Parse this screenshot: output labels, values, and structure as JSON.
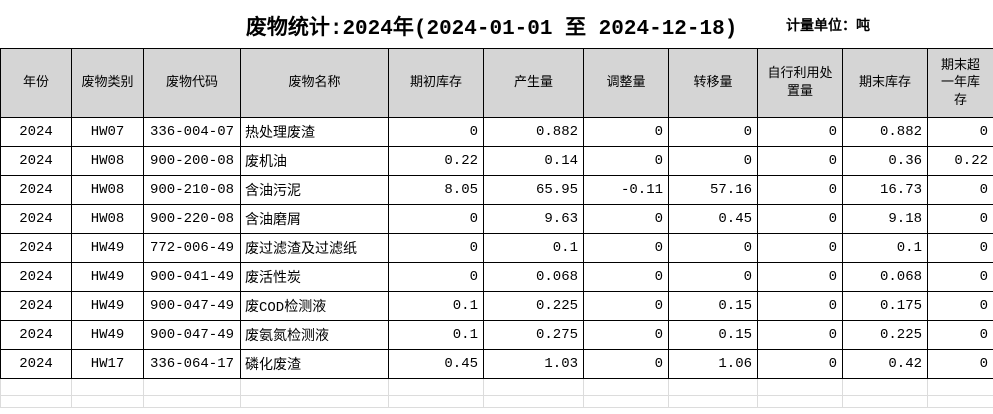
{
  "title": "废物统计:2024年(2024-01-01 至 2024-12-18)",
  "unit_label": "计量单位：吨",
  "table": {
    "columns": [
      "年份",
      "废物类别",
      "废物代码",
      "废物名称",
      "期初库存",
      "产生量",
      "调整量",
      "转移量",
      "自行利用处置量",
      "期末库存",
      "期末超一年库存"
    ],
    "rows": [
      [
        "2024",
        "HW07",
        "336-004-07",
        "热处理废渣",
        "0",
        "0.882",
        "0",
        "0",
        "0",
        "0.882",
        "0"
      ],
      [
        "2024",
        "HW08",
        "900-200-08",
        "废机油",
        "0.22",
        "0.14",
        "0",
        "0",
        "0",
        "0.36",
        "0.22"
      ],
      [
        "2024",
        "HW08",
        "900-210-08",
        "含油污泥",
        "8.05",
        "65.95",
        "-0.11",
        "57.16",
        "0",
        "16.73",
        "0"
      ],
      [
        "2024",
        "HW08",
        "900-220-08",
        "含油磨屑",
        "0",
        "9.63",
        "0",
        "0.45",
        "0",
        "9.18",
        "0"
      ],
      [
        "2024",
        "HW49",
        "772-006-49",
        "废过滤渣及过滤纸",
        "0",
        "0.1",
        "0",
        "0",
        "0",
        "0.1",
        "0"
      ],
      [
        "2024",
        "HW49",
        "900-041-49",
        "废活性炭",
        "0",
        "0.068",
        "0",
        "0",
        "0",
        "0.068",
        "0"
      ],
      [
        "2024",
        "HW49",
        "900-047-49",
        "废COD检测液",
        "0.1",
        "0.225",
        "0",
        "0.15",
        "0",
        "0.175",
        "0"
      ],
      [
        "2024",
        "HW49",
        "900-047-49",
        "废氨氮检测液",
        "0.1",
        "0.275",
        "0",
        "0.15",
        "0",
        "0.225",
        "0"
      ],
      [
        "2024",
        "HW17",
        "336-064-17",
        "磷化废渣",
        "0.45",
        "1.03",
        "0",
        "1.06",
        "0",
        "0.42",
        "0"
      ]
    ],
    "empty_grid_rows": 2
  },
  "colors": {
    "background": "#ffffff",
    "header_bg": "#d5d5d5",
    "table_border": "#000000",
    "light_grid": "#dcdcdc",
    "text": "#000000"
  }
}
